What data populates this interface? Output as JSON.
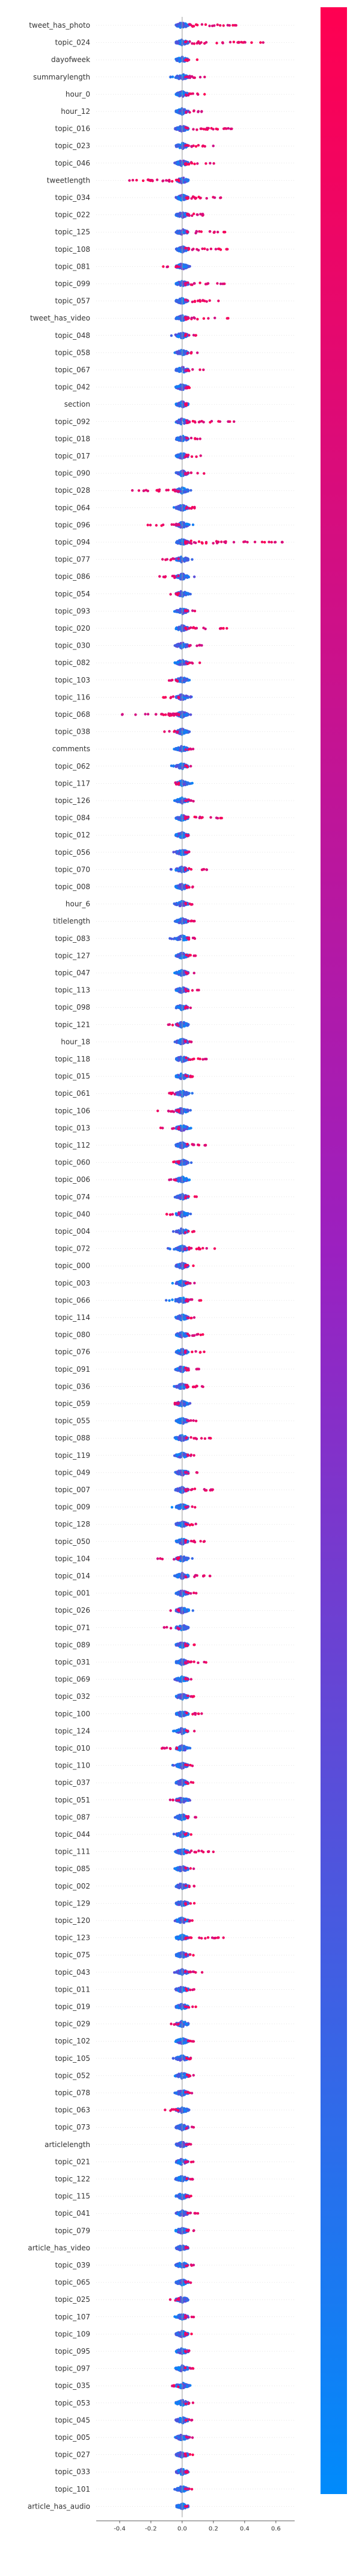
{
  "chart_data": {
    "type": "scatter",
    "subtype": "beeswarm",
    "title": "",
    "xlabel": "",
    "ylabel": "",
    "xlim": [
      -0.55,
      0.72
    ],
    "x_ticks": [
      "-0.4",
      "-0.2",
      "0.0",
      "0.2",
      "0.4",
      "0.6"
    ],
    "x_tick_values": [
      -0.4,
      -0.2,
      0.0,
      0.2,
      0.4,
      0.6
    ],
    "grid": false,
    "legend": "colorbar-right",
    "colors": {
      "low": "#008bfb",
      "mid": "#9b20c0",
      "high": "#ff0051",
      "zero_line": "#999999"
    },
    "features": [
      {
        "name": "tweet_has_photo",
        "neg": 0.03,
        "pos": 0.35
      },
      {
        "name": "topic_024",
        "neg": 0.04,
        "pos": 0.52
      },
      {
        "name": "dayofweek",
        "neg": 0.05,
        "pos": 0.12
      },
      {
        "name": "summarylength",
        "neg": 0.08,
        "pos": 0.16
      },
      {
        "name": "hour_0",
        "neg": 0.05,
        "pos": 0.15
      },
      {
        "name": "hour_12",
        "neg": 0.04,
        "pos": 0.15
      },
      {
        "name": "topic_016",
        "neg": 0.05,
        "pos": 0.37
      },
      {
        "name": "topic_023",
        "neg": 0.05,
        "pos": 0.2
      },
      {
        "name": "topic_046",
        "neg": 0.05,
        "pos": 0.25
      },
      {
        "name": "tweetlength",
        "neg": 0.36,
        "pos": 0.05
      },
      {
        "name": "topic_034",
        "neg": 0.04,
        "pos": 0.3
      },
      {
        "name": "topic_022",
        "neg": 0.04,
        "pos": 0.27
      },
      {
        "name": "topic_125",
        "neg": 0.04,
        "pos": 0.28
      },
      {
        "name": "topic_108",
        "neg": 0.04,
        "pos": 0.32
      },
      {
        "name": "topic_081",
        "neg": 0.13,
        "pos": 0.07
      },
      {
        "name": "topic_099",
        "neg": 0.04,
        "pos": 0.28
      },
      {
        "name": "topic_057",
        "neg": 0.04,
        "pos": 0.25
      },
      {
        "name": "tweet_has_video",
        "neg": 0.04,
        "pos": 0.3
      },
      {
        "name": "topic_048",
        "neg": 0.07,
        "pos": 0.1
      },
      {
        "name": "topic_058",
        "neg": 0.05,
        "pos": 0.1
      },
      {
        "name": "topic_067",
        "neg": 0.05,
        "pos": 0.14
      },
      {
        "name": "topic_042",
        "neg": 0.05,
        "pos": 0.09
      },
      {
        "name": "section",
        "neg": 0.05,
        "pos": 0.1
      },
      {
        "name": "topic_092",
        "neg": 0.04,
        "pos": 0.34
      },
      {
        "name": "topic_018",
        "neg": 0.05,
        "pos": 0.12
      },
      {
        "name": "topic_017",
        "neg": 0.05,
        "pos": 0.15
      },
      {
        "name": "topic_090",
        "neg": 0.05,
        "pos": 0.17
      },
      {
        "name": "topic_028",
        "neg": 0.33,
        "pos": 0.07
      },
      {
        "name": "topic_064",
        "neg": 0.08,
        "pos": 0.13
      },
      {
        "name": "topic_096",
        "neg": 0.22,
        "pos": 0.08
      },
      {
        "name": "topic_094",
        "neg": 0.04,
        "pos": 0.66
      },
      {
        "name": "topic_077",
        "neg": 0.13,
        "pos": 0.07
      },
      {
        "name": "topic_086",
        "neg": 0.17,
        "pos": 0.08
      },
      {
        "name": "topic_054",
        "neg": 0.1,
        "pos": 0.08
      },
      {
        "name": "topic_093",
        "neg": 0.06,
        "pos": 0.11
      },
      {
        "name": "topic_020",
        "neg": 0.04,
        "pos": 0.3
      },
      {
        "name": "topic_030",
        "neg": 0.05,
        "pos": 0.14
      },
      {
        "name": "topic_082",
        "neg": 0.05,
        "pos": 0.12
      },
      {
        "name": "topic_103",
        "neg": 0.12,
        "pos": 0.07
      },
      {
        "name": "topic_116",
        "neg": 0.13,
        "pos": 0.09
      },
      {
        "name": "topic_068",
        "neg": 0.42,
        "pos": 0.07
      },
      {
        "name": "topic_038",
        "neg": 0.12,
        "pos": 0.06
      },
      {
        "name": "comments",
        "neg": 0.06,
        "pos": 0.08
      },
      {
        "name": "topic_062",
        "neg": 0.08,
        "pos": 0.08
      },
      {
        "name": "topic_117",
        "neg": 0.1,
        "pos": 0.07
      },
      {
        "name": "topic_126",
        "neg": 0.05,
        "pos": 0.12
      },
      {
        "name": "topic_084",
        "neg": 0.04,
        "pos": 0.3
      },
      {
        "name": "topic_012",
        "neg": 0.05,
        "pos": 0.08
      },
      {
        "name": "topic_056",
        "neg": 0.06,
        "pos": 0.08
      },
      {
        "name": "topic_070",
        "neg": 0.09,
        "pos": 0.19
      },
      {
        "name": "topic_008",
        "neg": 0.05,
        "pos": 0.08
      },
      {
        "name": "hour_6",
        "neg": 0.06,
        "pos": 0.08
      },
      {
        "name": "titlelength",
        "neg": 0.06,
        "pos": 0.08
      },
      {
        "name": "topic_083",
        "neg": 0.09,
        "pos": 0.12
      },
      {
        "name": "topic_127",
        "neg": 0.05,
        "pos": 0.1
      },
      {
        "name": "topic_047",
        "neg": 0.05,
        "pos": 0.09
      },
      {
        "name": "topic_113",
        "neg": 0.05,
        "pos": 0.12
      },
      {
        "name": "topic_098",
        "neg": 0.05,
        "pos": 0.08
      },
      {
        "name": "topic_121",
        "neg": 0.09,
        "pos": 0.07
      },
      {
        "name": "hour_18",
        "neg": 0.05,
        "pos": 0.08
      },
      {
        "name": "topic_118",
        "neg": 0.05,
        "pos": 0.16
      },
      {
        "name": "topic_015",
        "neg": 0.05,
        "pos": 0.1
      },
      {
        "name": "topic_061",
        "neg": 0.11,
        "pos": 0.07
      },
      {
        "name": "topic_106",
        "neg": 0.17,
        "pos": 0.07
      },
      {
        "name": "topic_013",
        "neg": 0.15,
        "pos": 0.06
      },
      {
        "name": "topic_112",
        "neg": 0.05,
        "pos": 0.16
      },
      {
        "name": "topic_060",
        "neg": 0.08,
        "pos": 0.07
      },
      {
        "name": "topic_006",
        "neg": 0.09,
        "pos": 0.07
      },
      {
        "name": "topic_074",
        "neg": 0.06,
        "pos": 0.1
      },
      {
        "name": "topic_040",
        "neg": 0.12,
        "pos": 0.06
      },
      {
        "name": "topic_004",
        "neg": 0.07,
        "pos": 0.08
      },
      {
        "name": "topic_072",
        "neg": 0.1,
        "pos": 0.21
      },
      {
        "name": "topic_000",
        "neg": 0.07,
        "pos": 0.09
      },
      {
        "name": "topic_003",
        "neg": 0.07,
        "pos": 0.08
      },
      {
        "name": "topic_066",
        "neg": 0.11,
        "pos": 0.13
      },
      {
        "name": "topic_114",
        "neg": 0.05,
        "pos": 0.09
      },
      {
        "name": "topic_080",
        "neg": 0.05,
        "pos": 0.15
      },
      {
        "name": "topic_076",
        "neg": 0.05,
        "pos": 0.15
      },
      {
        "name": "topic_091",
        "neg": 0.05,
        "pos": 0.11
      },
      {
        "name": "topic_036",
        "neg": 0.06,
        "pos": 0.19
      },
      {
        "name": "topic_059",
        "neg": 0.1,
        "pos": 0.07
      },
      {
        "name": "topic_055",
        "neg": 0.05,
        "pos": 0.09
      },
      {
        "name": "topic_088",
        "neg": 0.07,
        "pos": 0.19
      },
      {
        "name": "topic_119",
        "neg": 0.06,
        "pos": 0.09
      },
      {
        "name": "topic_049",
        "neg": 0.05,
        "pos": 0.1
      },
      {
        "name": "topic_007",
        "neg": 0.05,
        "pos": 0.26
      },
      {
        "name": "topic_009",
        "neg": 0.07,
        "pos": 0.09
      },
      {
        "name": "topic_128",
        "neg": 0.05,
        "pos": 0.1
      },
      {
        "name": "topic_050",
        "neg": 0.05,
        "pos": 0.17
      },
      {
        "name": "topic_104",
        "neg": 0.16,
        "pos": 0.07
      },
      {
        "name": "topic_014",
        "neg": 0.05,
        "pos": 0.18
      },
      {
        "name": "topic_001",
        "neg": 0.05,
        "pos": 0.09
      },
      {
        "name": "topic_026",
        "neg": 0.09,
        "pos": 0.07
      },
      {
        "name": "topic_071",
        "neg": 0.13,
        "pos": 0.06
      },
      {
        "name": "topic_089",
        "neg": 0.05,
        "pos": 0.12
      },
      {
        "name": "topic_031",
        "neg": 0.06,
        "pos": 0.19
      },
      {
        "name": "topic_069",
        "neg": 0.05,
        "pos": 0.1
      },
      {
        "name": "topic_032",
        "neg": 0.06,
        "pos": 0.08
      },
      {
        "name": "topic_100",
        "neg": 0.05,
        "pos": 0.14
      },
      {
        "name": "topic_124",
        "neg": 0.06,
        "pos": 0.08
      },
      {
        "name": "topic_010",
        "neg": 0.15,
        "pos": 0.06
      },
      {
        "name": "topic_110",
        "neg": 0.07,
        "pos": 0.08
      },
      {
        "name": "topic_037",
        "neg": 0.05,
        "pos": 0.09
      },
      {
        "name": "topic_051",
        "neg": 0.08,
        "pos": 0.07
      },
      {
        "name": "topic_087",
        "neg": 0.05,
        "pos": 0.09
      },
      {
        "name": "topic_044",
        "neg": 0.06,
        "pos": 0.07
      },
      {
        "name": "topic_111",
        "neg": 0.05,
        "pos": 0.25
      },
      {
        "name": "topic_085",
        "neg": 0.05,
        "pos": 0.08
      },
      {
        "name": "topic_002",
        "neg": 0.05,
        "pos": 0.08
      },
      {
        "name": "topic_129",
        "neg": 0.05,
        "pos": 0.08
      },
      {
        "name": "topic_120",
        "neg": 0.05,
        "pos": 0.08
      },
      {
        "name": "topic_123",
        "neg": 0.04,
        "pos": 0.27
      },
      {
        "name": "topic_075",
        "neg": 0.05,
        "pos": 0.09
      },
      {
        "name": "topic_043",
        "neg": 0.05,
        "pos": 0.14
      },
      {
        "name": "topic_011",
        "neg": 0.05,
        "pos": 0.08
      },
      {
        "name": "topic_019",
        "neg": 0.05,
        "pos": 0.09
      },
      {
        "name": "topic_029",
        "neg": 0.08,
        "pos": 0.06
      },
      {
        "name": "topic_102",
        "neg": 0.05,
        "pos": 0.08
      },
      {
        "name": "topic_105",
        "neg": 0.06,
        "pos": 0.08
      },
      {
        "name": "topic_052",
        "neg": 0.05,
        "pos": 0.09
      },
      {
        "name": "topic_078",
        "neg": 0.05,
        "pos": 0.08
      },
      {
        "name": "topic_063",
        "neg": 0.12,
        "pos": 0.06
      },
      {
        "name": "topic_073",
        "neg": 0.06,
        "pos": 0.08
      },
      {
        "name": "articlelength",
        "neg": 0.05,
        "pos": 0.06
      },
      {
        "name": "topic_021",
        "neg": 0.05,
        "pos": 0.08
      },
      {
        "name": "topic_122",
        "neg": 0.05,
        "pos": 0.08
      },
      {
        "name": "topic_115",
        "neg": 0.05,
        "pos": 0.08
      },
      {
        "name": "topic_041",
        "neg": 0.05,
        "pos": 0.11
      },
      {
        "name": "topic_079",
        "neg": 0.05,
        "pos": 0.08
      },
      {
        "name": "article_has_video",
        "neg": 0.05,
        "pos": 0.06
      },
      {
        "name": "topic_039",
        "neg": 0.05,
        "pos": 0.09
      },
      {
        "name": "topic_065",
        "neg": 0.06,
        "pos": 0.07
      },
      {
        "name": "topic_025",
        "neg": 0.09,
        "pos": 0.06
      },
      {
        "name": "topic_107",
        "neg": 0.05,
        "pos": 0.08
      },
      {
        "name": "topic_109",
        "neg": 0.05,
        "pos": 0.08
      },
      {
        "name": "topic_095",
        "neg": 0.05,
        "pos": 0.07
      },
      {
        "name": "topic_097",
        "neg": 0.05,
        "pos": 0.08
      },
      {
        "name": "topic_035",
        "neg": 0.08,
        "pos": 0.06
      },
      {
        "name": "topic_053",
        "neg": 0.05,
        "pos": 0.07
      },
      {
        "name": "topic_045",
        "neg": 0.05,
        "pos": 0.07
      },
      {
        "name": "topic_005",
        "neg": 0.05,
        "pos": 0.07
      },
      {
        "name": "topic_027",
        "neg": 0.05,
        "pos": 0.07
      },
      {
        "name": "topic_033",
        "neg": 0.06,
        "pos": 0.07
      },
      {
        "name": "topic_101",
        "neg": 0.05,
        "pos": 0.07
      },
      {
        "name": "article_has_audio",
        "neg": 0.04,
        "pos": 0.05
      }
    ]
  }
}
